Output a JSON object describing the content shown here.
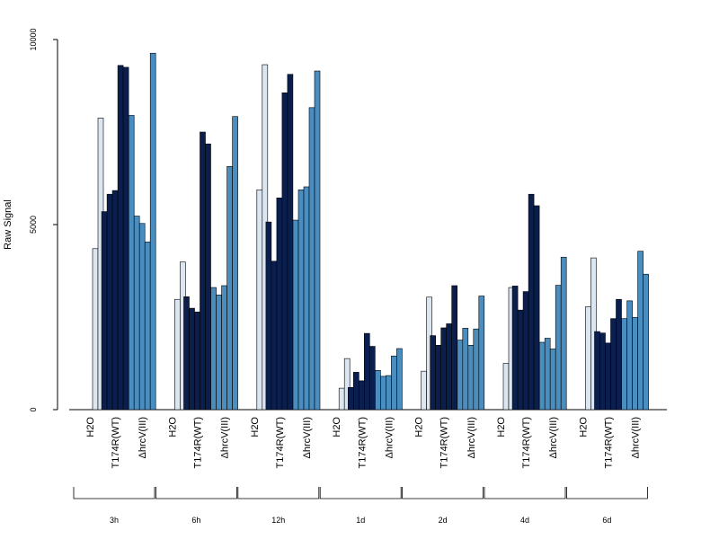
{
  "chart_data": {
    "type": "bar",
    "ylabel": "Raw Signal",
    "ylim": [
      0,
      10000
    ],
    "yticks": [
      0,
      5000,
      10000
    ],
    "groups": [
      "3h",
      "6h",
      "12h",
      "1d",
      "2d",
      "4d",
      "6d"
    ],
    "categories": [
      "H2O",
      "T174R(WT)",
      "ΔhrcV(III)"
    ],
    "colors": {
      "H2O": "#dce6f1",
      "T174R(WT)": "#0b1f4e",
      "ΔhrcV(III)": "#4a8dbf"
    },
    "values": {
      "3h": {
        "H2O": [
          0,
          4350,
          7880
        ],
        "T174R(WT)": [
          5350,
          5820,
          5920,
          9300,
          9250
        ],
        "ΔhrcV(III)": [
          7950,
          5230,
          5030,
          4530,
          9630
        ]
      },
      "6h": {
        "H2O": [
          0,
          2980,
          3990
        ],
        "T174R(WT)": [
          3050,
          2740,
          2640,
          7500,
          7180
        ],
        "ΔhrcV(III)": [
          3300,
          3100,
          3350,
          6570,
          7920
        ]
      },
      "12h": {
        "H2O": [
          0,
          5940,
          9320
        ],
        "T174R(WT)": [
          5070,
          4010,
          5720,
          8560,
          9060
        ],
        "ΔhrcV(III)": [
          5120,
          5940,
          6020,
          8160,
          9150
        ]
      },
      "1d": {
        "H2O": [
          0,
          580,
          1380
        ],
        "T174R(WT)": [
          600,
          1010,
          780,
          2060,
          1710
        ],
        "ΔhrcV(III)": [
          1060,
          900,
          920,
          1450,
          1650
        ]
      },
      "2d": {
        "H2O": [
          0,
          1040,
          3040
        ],
        "T174R(WT)": [
          2000,
          1740,
          2210,
          2320,
          3350
        ],
        "ΔhrcV(III)": [
          1880,
          2200,
          1740,
          2180,
          3070
        ]
      },
      "4d": {
        "H2O": [
          0,
          1250,
          3300
        ],
        "T174R(WT)": [
          3340,
          2690,
          3190,
          5820,
          5510
        ],
        "ΔhrcV(III)": [
          1820,
          1930,
          1640,
          3360,
          4120
        ]
      },
      "6d": {
        "H2O": [
          0,
          2780,
          4100
        ],
        "T174R(WT)": [
          2110,
          2070,
          1800,
          2460,
          2980
        ],
        "ΔhrcV(III)": [
          2460,
          2940,
          2490,
          4280,
          3660
        ]
      }
    }
  }
}
